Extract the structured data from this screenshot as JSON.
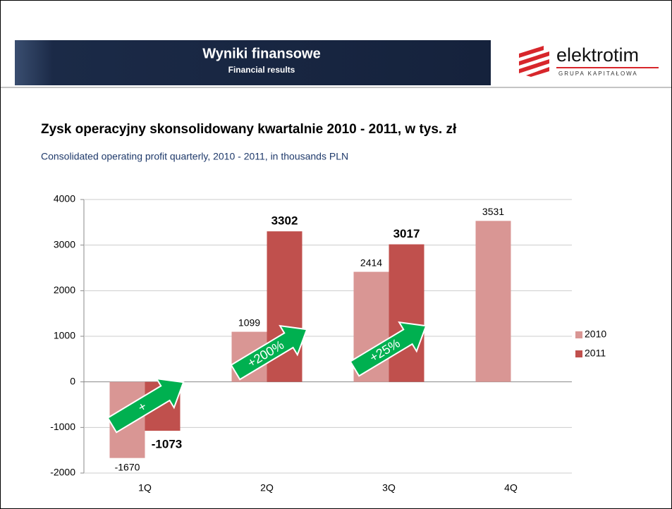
{
  "header": {
    "title": "Wyniki finansowe",
    "subtitle": "Financial results"
  },
  "logo": {
    "name": "elektrotim",
    "tagline": "GRUPA KAPITAŁOWA"
  },
  "chart_data": {
    "type": "bar",
    "title": "Zysk operacyjny skonsolidowany kwartalnie 2010 - 2011, w tys. zł",
    "subtitle": "Consolidated operating profit quarterly, 2010 - 2011, in thousands PLN",
    "categories": [
      "1Q",
      "2Q",
      "3Q",
      "4Q"
    ],
    "series": [
      {
        "name": "2010",
        "color": "#d99694",
        "values": [
          -1670,
          1099,
          2414,
          3531
        ]
      },
      {
        "name": "2011",
        "color": "#c0504d",
        "values": [
          -1073,
          3302,
          3017,
          null
        ]
      }
    ],
    "ylim": [
      -2000,
      4000
    ],
    "yticks": [
      -2000,
      -1000,
      0,
      1000,
      2000,
      3000,
      4000
    ],
    "grid": true,
    "legend": "right",
    "annotations": [
      "+",
      "+200%",
      "+25%"
    ],
    "annotation_color": "#00b050"
  }
}
